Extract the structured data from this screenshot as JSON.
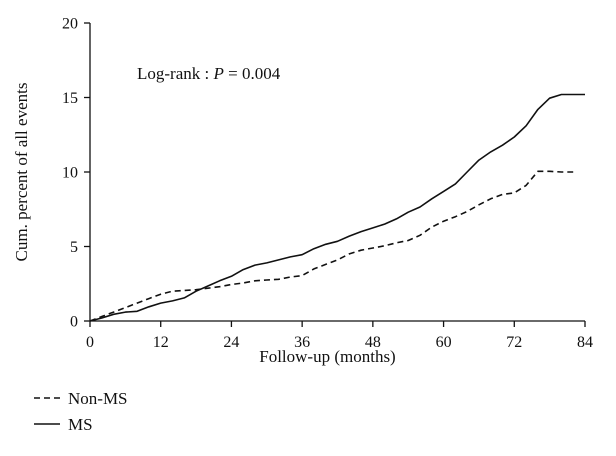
{
  "chart_data": {
    "type": "line",
    "title": "",
    "xlabel": "Follow-up (months)",
    "ylabel": "Cum. percent of all events",
    "xlim": [
      0,
      84
    ],
    "ylim": [
      0,
      20
    ],
    "xticks": [
      0,
      12,
      24,
      36,
      48,
      60,
      72,
      84
    ],
    "yticks": [
      0,
      5,
      10,
      15,
      20
    ],
    "grid": false,
    "legend_position": "bottom-left",
    "annotation": {
      "prefix": "Log-rank : ",
      "var": "P",
      "suffix": " = 0.004"
    },
    "series": [
      {
        "name": "Non-MS",
        "style": "dashed",
        "color": "#111111",
        "x": [
          0,
          2,
          4,
          6,
          8,
          10,
          12,
          14,
          16,
          18,
          20,
          22,
          24,
          26,
          28,
          30,
          32,
          34,
          36,
          38,
          40,
          42,
          44,
          46,
          48,
          50,
          52,
          54,
          56,
          58,
          60,
          62,
          64,
          66,
          68,
          70,
          72,
          74,
          76,
          78,
          80,
          82
        ],
        "y": [
          0,
          0.3,
          0.6,
          0.9,
          1.2,
          1.5,
          1.8,
          2.0,
          2.05,
          2.1,
          2.2,
          2.3,
          2.45,
          2.55,
          2.7,
          2.75,
          2.8,
          2.95,
          3.05,
          3.5,
          3.8,
          4.1,
          4.5,
          4.75,
          4.9,
          5.05,
          5.25,
          5.4,
          5.75,
          6.3,
          6.7,
          7.0,
          7.35,
          7.8,
          8.2,
          8.5,
          8.6,
          9.1,
          10.05,
          10.05,
          10.0,
          10.0
        ]
      },
      {
        "name": "MS",
        "style": "solid",
        "color": "#111111",
        "x": [
          0,
          2,
          4,
          6,
          8,
          10,
          12,
          14,
          16,
          18,
          20,
          22,
          24,
          26,
          28,
          30,
          32,
          34,
          36,
          38,
          40,
          42,
          44,
          46,
          48,
          50,
          52,
          54,
          56,
          58,
          60,
          62,
          64,
          66,
          68,
          70,
          72,
          74,
          76,
          78,
          80,
          82,
          84
        ],
        "y": [
          0,
          0.2,
          0.45,
          0.6,
          0.65,
          0.95,
          1.2,
          1.35,
          1.55,
          2.0,
          2.35,
          2.7,
          3.0,
          3.45,
          3.75,
          3.9,
          4.1,
          4.3,
          4.45,
          4.85,
          5.15,
          5.35,
          5.7,
          6.0,
          6.25,
          6.5,
          6.85,
          7.3,
          7.65,
          8.2,
          8.7,
          9.2,
          10.0,
          10.8,
          11.35,
          11.8,
          12.35,
          13.1,
          14.2,
          14.95,
          15.2,
          15.2,
          15.2
        ]
      }
    ]
  }
}
